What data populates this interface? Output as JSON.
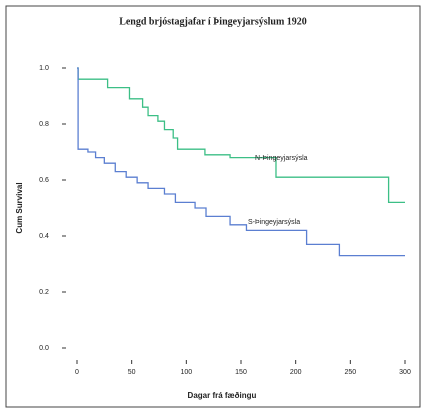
{
  "chart_data": {
    "type": "step",
    "title": "Lengd brjóstagjafar í Þingeyjarsýslum 1920",
    "xlabel": "Dagar frá fæðingu",
    "ylabel": "Cum Survival",
    "xlim": [
      0,
      300
    ],
    "ylim": [
      0,
      1
    ],
    "xticks": [
      0,
      50,
      100,
      150,
      200,
      250,
      300
    ],
    "yticks": [
      {
        "value": 0,
        "label": "0.0"
      },
      0.2,
      0.4,
      0.6,
      0.8,
      {
        "value": 1,
        "label": "1.0"
      }
    ],
    "series": [
      {
        "name": "N-Þingeyjarsýsla",
        "color": "#3cbf86",
        "x": [
          0,
          1,
          28,
          48,
          60,
          65,
          74,
          80,
          88,
          92,
          117,
          140,
          182,
          285,
          300
        ],
        "values": [
          1.0,
          0.96,
          0.93,
          0.89,
          0.86,
          0.83,
          0.81,
          0.78,
          0.75,
          0.71,
          0.69,
          0.68,
          0.61,
          0.52,
          0.52
        ]
      },
      {
        "name": "S-Þingeyjarsýsla",
        "color": "#5b7fd1",
        "x": [
          0,
          1,
          10,
          17,
          25,
          35,
          45,
          55,
          65,
          80,
          90,
          108,
          118,
          140,
          155,
          210,
          240,
          300
        ],
        "values": [
          1.0,
          0.71,
          0.7,
          0.68,
          0.66,
          0.63,
          0.61,
          0.59,
          0.57,
          0.55,
          0.52,
          0.5,
          0.47,
          0.44,
          0.42,
          0.37,
          0.33,
          0.33
        ]
      }
    ]
  }
}
